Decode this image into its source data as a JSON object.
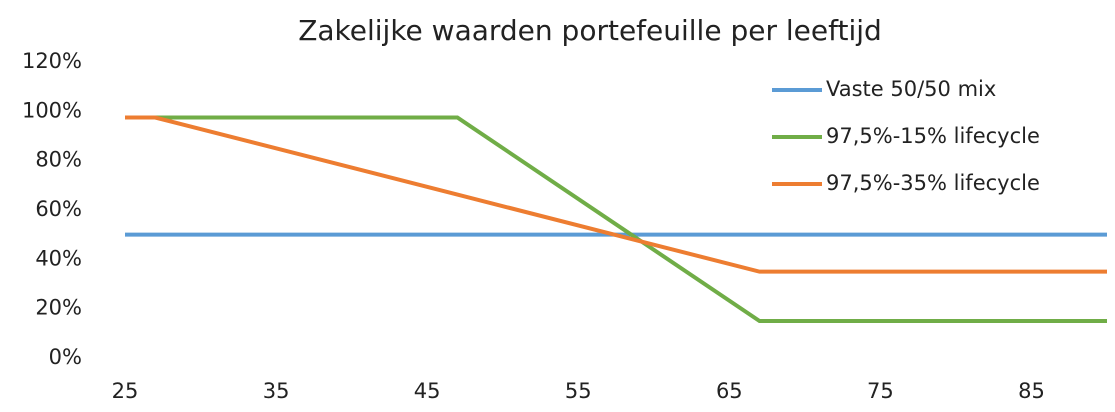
{
  "chart_data": {
    "type": "line",
    "title": "Zakelijke waarden portefeuille per leeftijd",
    "x": [
      25,
      27,
      47,
      67,
      90
    ],
    "series": [
      {
        "name": "Vaste 50/50 mix",
        "color": "#5b9bd5",
        "values": [
          50,
          50,
          50,
          50,
          50
        ]
      },
      {
        "name": "97,5%-15% lifecycle",
        "color": "#70ad47",
        "values": [
          97.5,
          97.5,
          97.5,
          15,
          15
        ]
      },
      {
        "name": "97,5%-35% lifecycle",
        "color": "#ed7d31",
        "values": [
          97.5,
          97.5,
          66.25,
          35,
          35
        ]
      }
    ],
    "xlim": [
      25,
      90
    ],
    "xticks": [
      25,
      35,
      45,
      55,
      65,
      75,
      85
    ],
    "ylim": [
      0,
      120
    ],
    "yticks": [
      {
        "value": 0,
        "label": "0%"
      },
      {
        "value": 20,
        "label": "20%"
      },
      {
        "value": 40,
        "label": "40%"
      },
      {
        "value": 60,
        "label": "60%"
      },
      {
        "value": 80,
        "label": "80%"
      },
      {
        "value": 100,
        "label": "100%"
      },
      {
        "value": 120,
        "label": "120%"
      }
    ],
    "grid": false,
    "legend": "top-right"
  }
}
